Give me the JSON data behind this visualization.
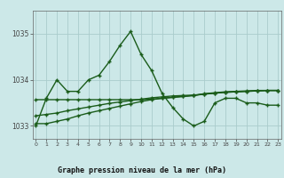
{
  "title": "Graphe pression niveau de la mer (hPa)",
  "background_color": "#cce8e8",
  "grid_color": "#aacccc",
  "line_color": "#1a5c1a",
  "x_ticks": [
    0,
    1,
    2,
    3,
    4,
    5,
    6,
    7,
    8,
    9,
    10,
    11,
    12,
    13,
    14,
    15,
    16,
    17,
    18,
    19,
    20,
    21,
    22,
    23
  ],
  "y_ticks": [
    1033,
    1034,
    1035
  ],
  "ylim": [
    1032.72,
    1035.5
  ],
  "xlim": [
    -0.3,
    23.3
  ],
  "main_y": [
    1033.0,
    1033.6,
    1034.0,
    1033.75,
    1033.75,
    1034.0,
    1034.1,
    1034.4,
    1034.75,
    1035.05,
    1034.55,
    1034.2,
    1033.7,
    1033.4,
    1033.15,
    1033.0,
    1033.1,
    1033.5,
    1033.6,
    1033.6,
    1033.5,
    1033.5,
    1033.45,
    1033.45
  ],
  "flat1_y": [
    1033.57,
    1033.57,
    1033.57,
    1033.57,
    1033.57,
    1033.57,
    1033.57,
    1033.57,
    1033.57,
    1033.57,
    1033.57,
    1033.58,
    1033.6,
    1033.62,
    1033.64,
    1033.66,
    1033.7,
    1033.72,
    1033.74,
    1033.75,
    1033.76,
    1033.77,
    1033.77,
    1033.77
  ],
  "slow1_y": [
    1033.05,
    1033.05,
    1033.1,
    1033.15,
    1033.22,
    1033.28,
    1033.33,
    1033.38,
    1033.43,
    1033.48,
    1033.53,
    1033.57,
    1033.6,
    1033.62,
    1033.64,
    1033.66,
    1033.69,
    1033.71,
    1033.73,
    1033.74,
    1033.75,
    1033.76,
    1033.77,
    1033.77
  ],
  "slow2_y": [
    1033.22,
    1033.25,
    1033.28,
    1033.33,
    1033.37,
    1033.41,
    1033.45,
    1033.49,
    1033.52,
    1033.55,
    1033.58,
    1033.61,
    1033.63,
    1033.65,
    1033.66,
    1033.67,
    1033.69,
    1033.71,
    1033.73,
    1033.74,
    1033.75,
    1033.76,
    1033.77,
    1033.77
  ]
}
